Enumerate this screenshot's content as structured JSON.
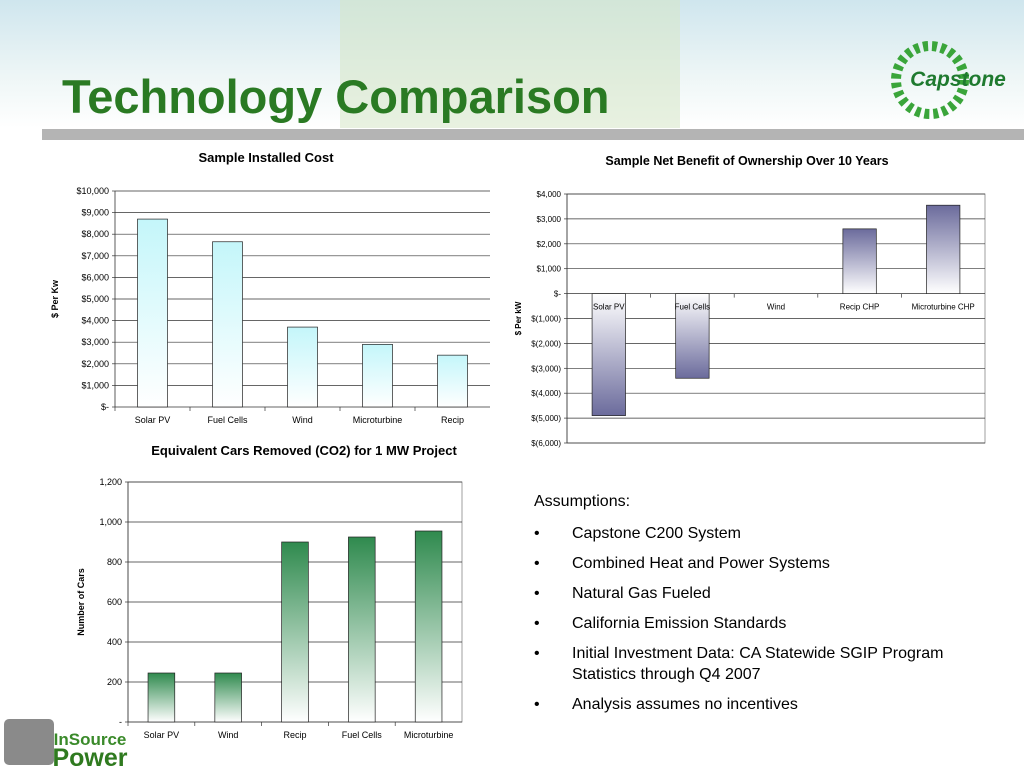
{
  "title": "Technology Comparison",
  "logo_top": "Capstone",
  "logo_bottom": {
    "line1": "InSource",
    "line2": "Power"
  },
  "assumptions": {
    "heading": "Assumptions:",
    "items": [
      "Capstone C200 System",
      "Combined Heat and Power Systems",
      "Natural Gas Fueled",
      "California Emission Standards",
      "Initial Investment Data: CA Statewide SGIP Program Statistics through Q4 2007",
      "Analysis assumes no incentives"
    ]
  },
  "chart_data": [
    {
      "type": "bar",
      "title": "Sample Installed Cost",
      "y_label": "$ Per Kw",
      "categories": [
        "Solar PV",
        "Fuel Cells",
        "Wind",
        "Microturbine",
        "Recip"
      ],
      "values": [
        8700,
        7650,
        3700,
        2900,
        2400
      ],
      "color": "#c4f6fa",
      "ylim": [
        0,
        10000
      ],
      "yticks": [
        {
          "value": 0,
          "label": "$-"
        },
        {
          "value": 1000,
          "label": "$1,000"
        },
        {
          "value": 2000,
          "label": "$2,000"
        },
        {
          "value": 3000,
          "label": "$3,000"
        },
        {
          "value": 4000,
          "label": "$4,000"
        },
        {
          "value": 5000,
          "label": "$5,000"
        },
        {
          "value": 6000,
          "label": "$6,000"
        },
        {
          "value": 7000,
          "label": "$7,000"
        },
        {
          "value": 8000,
          "label": "$8,000"
        },
        {
          "value": 9000,
          "label": "$9,000"
        },
        {
          "value": 10000,
          "label": "$10,000"
        }
      ],
      "grid": true
    },
    {
      "type": "bar",
      "title": "Sample Net Benefit of Ownership Over 10 Years",
      "y_label": "$ Per kW",
      "categories": [
        "Solar PV",
        "Fuel Cells",
        "Wind",
        "Recip CHP",
        "Microturbine CHP"
      ],
      "values": [
        -4900,
        -3400,
        0,
        2600,
        3550
      ],
      "color": "#6b6b9c",
      "ylim": [
        -6000,
        4000
      ],
      "yticks": [
        {
          "value": -6000,
          "label": "$(6,000)"
        },
        {
          "value": -5000,
          "label": "$(5,000)"
        },
        {
          "value": -4000,
          "label": "$(4,000)"
        },
        {
          "value": -3000,
          "label": "$(3,000)"
        },
        {
          "value": -2000,
          "label": "$(2,000)"
        },
        {
          "value": -1000,
          "label": "$(1,000)"
        },
        {
          "value": 0,
          "label": "$-"
        },
        {
          "value": 1000,
          "label": "$1,000"
        },
        {
          "value": 2000,
          "label": "$2,000"
        },
        {
          "value": 3000,
          "label": "$3,000"
        },
        {
          "value": 4000,
          "label": "$4,000"
        }
      ],
      "grid": true
    },
    {
      "type": "bar",
      "title": "Equivalent Cars Removed (CO2) for 1 MW Project",
      "y_label": "Number of Cars",
      "categories": [
        "Solar PV",
        "Wind",
        "Recip",
        "Fuel Cells",
        "Microturbine"
      ],
      "values": [
        245,
        245,
        900,
        925,
        955
      ],
      "color": "#2f8a4e",
      "ylim": [
        0,
        1200
      ],
      "yticks": [
        {
          "value": 0,
          "label": "-"
        },
        200,
        400,
        600,
        800,
        {
          "value": 1000,
          "label": "1,000"
        },
        {
          "value": 1200,
          "label": "1,200"
        }
      ],
      "grid": true
    }
  ]
}
